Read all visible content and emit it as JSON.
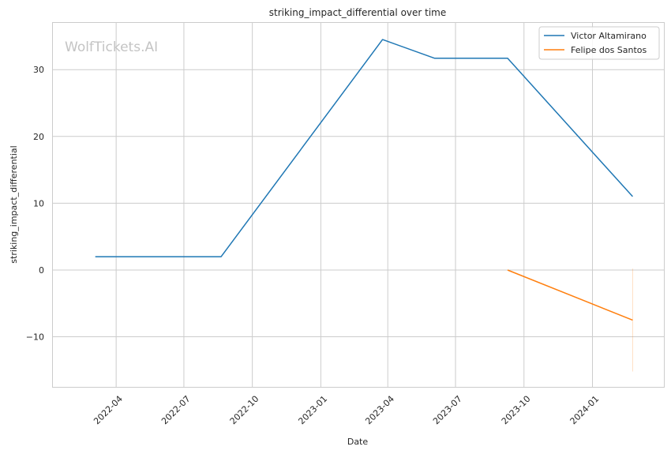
{
  "chart_data": {
    "type": "line",
    "title": "striking_impact_differential over time",
    "xlabel": "Date",
    "ylabel": "striking_impact_differential",
    "watermark": "WolfTickets.AI",
    "xlim": [
      "2022-01-06",
      "2024-04-06"
    ],
    "ylim": [
      -17.5,
      37
    ],
    "xticks": [
      "2022-04",
      "2022-07",
      "2022-10",
      "2023-01",
      "2023-04",
      "2023-07",
      "2023-10",
      "2024-01"
    ],
    "yticks": [
      -10,
      0,
      10,
      20,
      30
    ],
    "ytick_labels": [
      "−10",
      "0",
      "10",
      "20",
      "30"
    ],
    "grid": true,
    "legend_position": "top-right",
    "series": [
      {
        "name": "Victor Altamirano",
        "color": "#1f77b4",
        "x": [
          "2022-03-04",
          "2022-08-20",
          "2023-03-25",
          "2023-06-03",
          "2023-09-09",
          "2024-02-24"
        ],
        "y": [
          2.0,
          2.0,
          34.5,
          31.7,
          31.7,
          11.0
        ]
      },
      {
        "name": "Felipe dos Santos",
        "color": "#ff7f0e",
        "x": [
          "2023-09-09",
          "2024-02-24"
        ],
        "y": [
          0.0,
          -7.5
        ],
        "errorbar": {
          "x": "2024-02-24",
          "low": -15.2,
          "high": 0.2
        }
      }
    ]
  }
}
